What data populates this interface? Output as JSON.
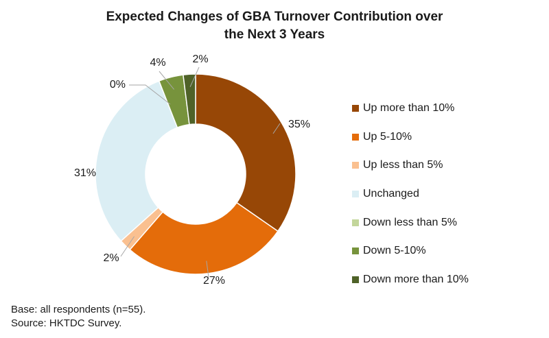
{
  "chart_data": {
    "type": "pie",
    "title": "Expected Changes of GBA Turnover Contribution over the Next 3 Years",
    "title_lines": [
      "Expected Changes of GBA Turnover Contribution over",
      "the Next 3 Years"
    ],
    "donut": true,
    "legend_position": "right",
    "series": [
      {
        "name": "Up more than 10%",
        "value": 35,
        "label": "35%",
        "color": "#974706"
      },
      {
        "name": "Up 5-10%",
        "value": 27,
        "label": "27%",
        "color": "#e46c0a"
      },
      {
        "name": "Up less than 5%",
        "value": 2,
        "label": "2%",
        "color": "#fac090"
      },
      {
        "name": "Unchanged",
        "value": 31,
        "label": "31%",
        "color": "#dbeef4"
      },
      {
        "name": "Down less than 5%",
        "value": 0,
        "label": "0%",
        "color": "#c3d69b"
      },
      {
        "name": "Down 5-10%",
        "value": 4,
        "label": "4%",
        "color": "#77933c"
      },
      {
        "name": "Down more than 10%",
        "value": 2,
        "label": "2%",
        "color": "#4f6228"
      }
    ]
  },
  "footnotes": {
    "base": "Base: all respondents (n=55).",
    "source": "Source: HKTDC Survey."
  }
}
